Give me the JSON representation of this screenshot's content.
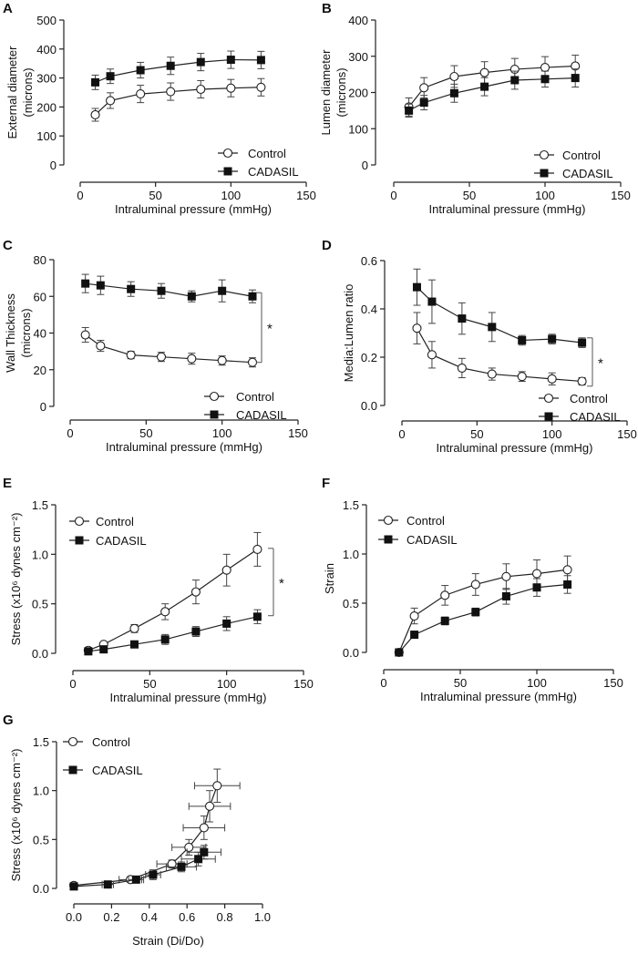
{
  "chart_data": [
    {
      "panel": "A",
      "type": "line",
      "xlabel": "Intraluminal pressure (mmHg)",
      "ylabel": [
        "External diameter",
        "(microns)"
      ],
      "xlim": [
        0,
        150
      ],
      "xticks": [
        0,
        50,
        100,
        150
      ],
      "ylim": [
        0,
        500
      ],
      "yticks": [
        0,
        100,
        200,
        300,
        400,
        500
      ],
      "ytick_labels": [
        "0",
        "100",
        "200",
        "300",
        "400",
        "500"
      ],
      "legend": "bottom-right",
      "series": [
        {
          "name": "Control",
          "marker": "open-circle",
          "x": [
            10,
            20,
            40,
            60,
            80,
            100,
            120
          ],
          "y": [
            173,
            222,
            245,
            253,
            261,
            265,
            268
          ],
          "yerr": [
            22,
            27,
            30,
            30,
            30,
            30,
            30
          ]
        },
        {
          "name": "CADASIL",
          "marker": "filled-square",
          "x": [
            10,
            20,
            40,
            60,
            80,
            100,
            120
          ],
          "y": [
            285,
            306,
            327,
            342,
            355,
            363,
            362
          ],
          "yerr": [
            25,
            25,
            27,
            30,
            30,
            30,
            30
          ]
        }
      ]
    },
    {
      "panel": "B",
      "type": "line",
      "xlabel": "Intraluminal pressure (mmHg)",
      "ylabel": [
        "Lumen diameter",
        "(microns)"
      ],
      "xlim": [
        0,
        150
      ],
      "xticks": [
        0,
        50,
        100,
        150
      ],
      "ylim": [
        0,
        400
      ],
      "yticks": [
        0,
        100,
        200,
        300,
        400
      ],
      "ytick_labels": [
        "0",
        "100",
        "200",
        "300",
        "400"
      ],
      "legend": "bottom-right",
      "series": [
        {
          "name": "Control",
          "marker": "open-circle",
          "x": [
            10,
            20,
            40,
            60,
            80,
            100,
            120
          ],
          "y": [
            160,
            213,
            244,
            255,
            264,
            269,
            273
          ],
          "yerr": [
            25,
            28,
            30,
            30,
            30,
            30,
            30
          ]
        },
        {
          "name": "CADASIL",
          "marker": "filled-square",
          "x": [
            10,
            20,
            40,
            60,
            80,
            100,
            120
          ],
          "y": [
            150,
            172,
            198,
            216,
            234,
            237,
            240
          ],
          "yerr": [
            18,
            20,
            25,
            25,
            25,
            22,
            25
          ]
        }
      ]
    },
    {
      "panel": "C",
      "type": "line",
      "xlabel": "Intraluminal pressure (mmHg)",
      "ylabel": [
        "Wall Thickness",
        "(microns)"
      ],
      "xlim": [
        0,
        150
      ],
      "xticks": [
        0,
        50,
        100,
        150
      ],
      "ylim": [
        0,
        80
      ],
      "yticks": [
        0,
        20,
        40,
        60,
        80
      ],
      "ytick_labels": [
        "0",
        "20",
        "40",
        "60",
        "80"
      ],
      "legend": "bottom-right",
      "significance": {
        "from": 24,
        "to": 62,
        "label": "*"
      },
      "series": [
        {
          "name": "Control",
          "marker": "open-circle",
          "x": [
            10,
            20,
            40,
            60,
            80,
            100,
            120
          ],
          "y": [
            39,
            33,
            28,
            27,
            26,
            25,
            24
          ],
          "yerr": [
            4,
            3,
            2,
            2.5,
            3,
            2.5,
            2.5
          ]
        },
        {
          "name": "CADASIL",
          "marker": "filled-square",
          "x": [
            10,
            20,
            40,
            60,
            80,
            100,
            120
          ],
          "y": [
            67,
            66,
            64,
            63,
            60,
            63,
            60
          ],
          "yerr": [
            5,
            5,
            4,
            4,
            3,
            6,
            3.5
          ]
        }
      ]
    },
    {
      "panel": "D",
      "type": "line",
      "xlabel": "Intraluminal pressure (mmHg)",
      "ylabel": [
        "Media:Lumen ratio"
      ],
      "xlim": [
        0,
        150
      ],
      "xticks": [
        0,
        50,
        100,
        150
      ],
      "ylim": [
        0,
        0.6
      ],
      "yticks": [
        0,
        0.2,
        0.4,
        0.6
      ],
      "ytick_labels": [
        "0.0",
        "0.2",
        "0.4",
        "0.6"
      ],
      "legend": "bottom-right",
      "significance": {
        "from": 0.08,
        "to": 0.28,
        "label": "*"
      },
      "series": [
        {
          "name": "Control",
          "marker": "open-circle",
          "x": [
            10,
            20,
            40,
            60,
            80,
            100,
            120
          ],
          "y": [
            0.32,
            0.21,
            0.155,
            0.13,
            0.12,
            0.11,
            0.1
          ],
          "yerr": [
            0.065,
            0.055,
            0.04,
            0.025,
            0.02,
            0.025,
            0.015
          ]
        },
        {
          "name": "CADASIL",
          "marker": "filled-square",
          "x": [
            10,
            20,
            40,
            60,
            80,
            100,
            120
          ],
          "y": [
            0.49,
            0.43,
            0.36,
            0.325,
            0.27,
            0.275,
            0.26
          ],
          "yerr": [
            0.075,
            0.09,
            0.065,
            0.06,
            0.02,
            0.02,
            0.02
          ]
        }
      ]
    },
    {
      "panel": "E",
      "type": "line",
      "xlabel": "Intraluminal pressure (mmHg)",
      "ylabel": [
        "Stress (x10⁶ dynes cm⁻²)"
      ],
      "xlim": [
        0,
        150
      ],
      "xticks": [
        0,
        50,
        100,
        150
      ],
      "ylim": [
        0,
        1.5
      ],
      "yticks": [
        0,
        0.5,
        1.0,
        1.5
      ],
      "ytick_labels": [
        "0.0",
        "0.5",
        "1.0",
        "1.5"
      ],
      "legend": "top-left",
      "significance": {
        "from": 0.38,
        "to": 1.06,
        "label": "*"
      },
      "series": [
        {
          "name": "Control",
          "marker": "open-circle",
          "x": [
            10,
            20,
            40,
            60,
            80,
            100,
            120
          ],
          "y": [
            0.03,
            0.09,
            0.25,
            0.42,
            0.62,
            0.84,
            1.05
          ],
          "yerr": [
            0.02,
            0.02,
            0.04,
            0.08,
            0.12,
            0.16,
            0.17
          ]
        },
        {
          "name": "CADASIL",
          "marker": "filled-square",
          "x": [
            10,
            20,
            40,
            60,
            80,
            100,
            120
          ],
          "y": [
            0.02,
            0.04,
            0.09,
            0.14,
            0.22,
            0.3,
            0.37
          ],
          "yerr": [
            0.01,
            0.01,
            0.02,
            0.05,
            0.05,
            0.07,
            0.07
          ]
        }
      ]
    },
    {
      "panel": "F",
      "type": "line",
      "xlabel": "Intraluminal pressure (mmHg)",
      "ylabel": [
        "Strain"
      ],
      "xlim": [
        0,
        150
      ],
      "xticks": [
        0,
        50,
        100,
        150
      ],
      "ylim": [
        0,
        1.5
      ],
      "yticks": [
        0,
        0.5,
        1.0,
        1.5
      ],
      "ytick_labels": [
        "0.0",
        "0.5",
        "1.0",
        "1.5"
      ],
      "legend": "top-left",
      "series": [
        {
          "name": "Control",
          "marker": "open-circle",
          "x": [
            10,
            20,
            40,
            60,
            80,
            100,
            120
          ],
          "y": [
            0,
            0.37,
            0.58,
            0.69,
            0.77,
            0.8,
            0.84
          ],
          "yerr": [
            0,
            0.08,
            0.1,
            0.11,
            0.13,
            0.14,
            0.14
          ]
        },
        {
          "name": "CADASIL",
          "marker": "filled-square",
          "x": [
            10,
            20,
            40,
            60,
            80,
            100,
            120
          ],
          "y": [
            0,
            0.18,
            0.32,
            0.41,
            0.57,
            0.66,
            0.69
          ],
          "yerr": [
            0,
            0.03,
            0.04,
            0.04,
            0.08,
            0.09,
            0.09
          ]
        }
      ]
    },
    {
      "panel": "G",
      "type": "line",
      "xlabel": "Strain (Di/Do)",
      "ylabel": [
        "Stress (x10⁶ dynes cm⁻²)"
      ],
      "xlim": [
        0,
        1.0
      ],
      "xticks": [
        0,
        0.2,
        0.4,
        0.6,
        0.8,
        1.0
      ],
      "xtick_labels": [
        "0.0",
        "0.2",
        "0.4",
        "0.6",
        "0.8",
        "1.0"
      ],
      "ylim": [
        0,
        1.5
      ],
      "yticks": [
        0,
        0.5,
        1.0,
        1.5
      ],
      "ytick_labels": [
        "0.0",
        "0.5",
        "1.0",
        "1.5"
      ],
      "legend": "top-left",
      "series": [
        {
          "name": "Control",
          "marker": "open-circle",
          "x": [
            0,
            0.3,
            0.52,
            0.61,
            0.69,
            0.72,
            0.76
          ],
          "y": [
            0.03,
            0.09,
            0.25,
            0.42,
            0.62,
            0.84,
            1.05
          ],
          "xerr": [
            0,
            0.06,
            0.08,
            0.09,
            0.11,
            0.11,
            0.12
          ],
          "yerr": [
            0.02,
            0.02,
            0.04,
            0.08,
            0.12,
            0.16,
            0.17
          ]
        },
        {
          "name": "CADASIL",
          "marker": "filled-square",
          "x": [
            0,
            0.18,
            0.33,
            0.42,
            0.57,
            0.66,
            0.69
          ],
          "y": [
            0.02,
            0.04,
            0.09,
            0.14,
            0.22,
            0.3,
            0.37
          ],
          "xerr": [
            0,
            0.03,
            0.04,
            0.04,
            0.08,
            0.09,
            0.09
          ],
          "yerr": [
            0.01,
            0.01,
            0.02,
            0.05,
            0.05,
            0.07,
            0.07
          ]
        }
      ]
    }
  ]
}
